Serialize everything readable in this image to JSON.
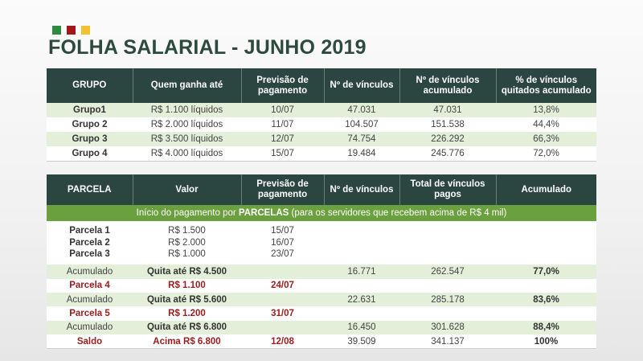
{
  "colors": {
    "logo_green": "#2e8b3e",
    "logo_red": "#a3151b",
    "logo_yellow": "#f2c12e",
    "header_bg": "#2b4540",
    "band_green": "#6aa03d",
    "row_green": "#e4efd9",
    "emphasis_red": "#9c1c1c"
  },
  "title": "FOLHA SALARIAL - JUNHO 2019",
  "table1": {
    "headers": [
      "GRUPO",
      "Quem ganha até",
      "Previsão de pagamento",
      "Nº  de vínculos",
      "Nº de vínculos acumulado",
      "% de vínculos quitados acumulado"
    ],
    "rows": [
      [
        "Grupo1",
        "R$ 1.100 líquidos",
        "10/07",
        "47.031",
        "47.031",
        "13,8%"
      ],
      [
        "Grupo 2",
        "R$ 2.000 líquidos",
        "11/07",
        "104.507",
        "151.538",
        "44,4%"
      ],
      [
        "Grupo 3",
        "R$ 3.500 líquidos",
        "12/07",
        "74.754",
        "226.292",
        "66,3%"
      ],
      [
        "Grupo 4",
        "R$ 4.000 líquidos",
        "15/07",
        "19.484",
        "245.776",
        "72,0%"
      ]
    ]
  },
  "table2": {
    "headers": [
      "PARCELA",
      "Valor",
      "Previsão de pagamento",
      "Nº de vínculos",
      "Total de vínculos pagos",
      "Acumulado"
    ],
    "band": {
      "prefix": "Início do pagamento por ",
      "bold": "PARCELAS",
      "suffix": " (para os servidores que recebem acima de R$ 4 mil)"
    },
    "parcelas": [
      [
        "Parcela 1",
        "R$ 1.500",
        "15/07"
      ],
      [
        "Parcela 2",
        "R$ 2.000",
        "16/07"
      ],
      [
        "Parcela 3",
        "R$ 1.000",
        "23/07"
      ]
    ],
    "rows": [
      [
        "Acumulado",
        "Quita até R$ 4.500",
        "",
        "16.771",
        "262.547",
        "77,0%"
      ],
      [
        "Parcela 4",
        "R$ 1.100",
        "24/07",
        "",
        "",
        ""
      ],
      [
        "Acumulado",
        "Quita até R$ 5.600",
        "",
        "22.631",
        "285.178",
        "83,6%"
      ],
      [
        "Parcela 5",
        "R$ 1.200",
        "31/07",
        "",
        "",
        ""
      ],
      [
        "Acumulado",
        "Quita até R$ 6.800",
        "",
        "16.450",
        "301.628",
        "88,4%"
      ],
      [
        "Saldo",
        "Acima R$ 6.800",
        "12/08",
        "39.509",
        "341.137",
        "100%"
      ]
    ]
  }
}
